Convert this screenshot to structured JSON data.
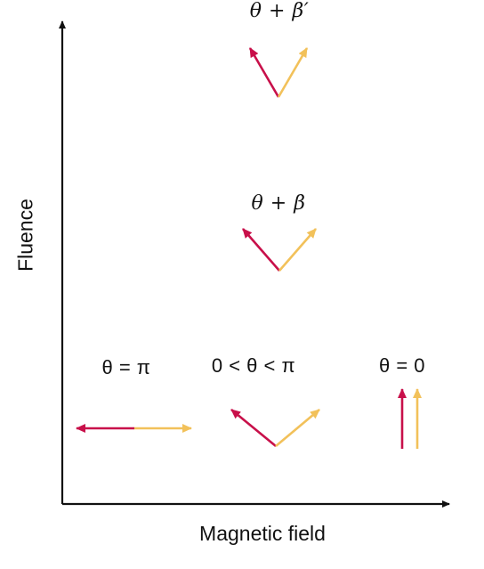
{
  "axes": {
    "x_label": "Magnetic field",
    "y_label": "Fluence"
  },
  "states": [
    {
      "id": "theta-plus-beta-prime",
      "label": "θ + β′"
    },
    {
      "id": "theta-plus-beta",
      "label": "θ + β"
    },
    {
      "id": "theta-equals-pi",
      "label": "θ = π"
    },
    {
      "id": "theta-between",
      "label": "0 < θ < π"
    },
    {
      "id": "theta-equals-zero",
      "label": "θ = 0"
    }
  ],
  "colors": {
    "vector_a": "#c8104a",
    "vector_b": "#f2c15a",
    "axis": "#111111"
  }
}
